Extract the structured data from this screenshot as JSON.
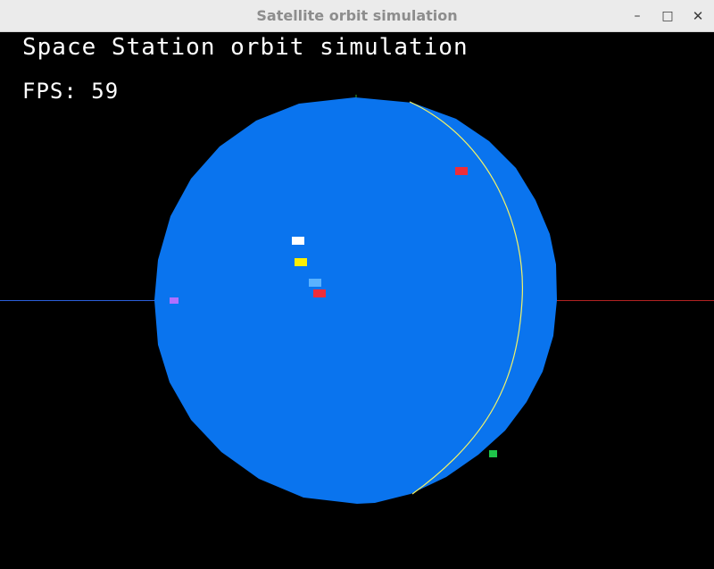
{
  "window": {
    "title": "Satellite orbit simulation",
    "controls": {
      "minimize_icon": "minimize-icon",
      "maximize_icon": "maximize-icon",
      "close_icon": "close-icon"
    }
  },
  "hud": {
    "heading": "Space Station orbit simulation",
    "fps_label": "FPS:",
    "fps_value": "59",
    "fps_text": "FPS: 59"
  },
  "colors": {
    "background": "#000000",
    "planet": "#0a74ee",
    "orbit_ring": "#f4f466",
    "axis_x": "#b22222",
    "axis_y": "#2ea82e",
    "axis_z": "#2b5fd9",
    "satellites": [
      "#ffffff",
      "#ffee00",
      "#5ab2ff",
      "#ee2d3a",
      "#ee2d3a",
      "#b070ff",
      "#1fc44a"
    ]
  }
}
